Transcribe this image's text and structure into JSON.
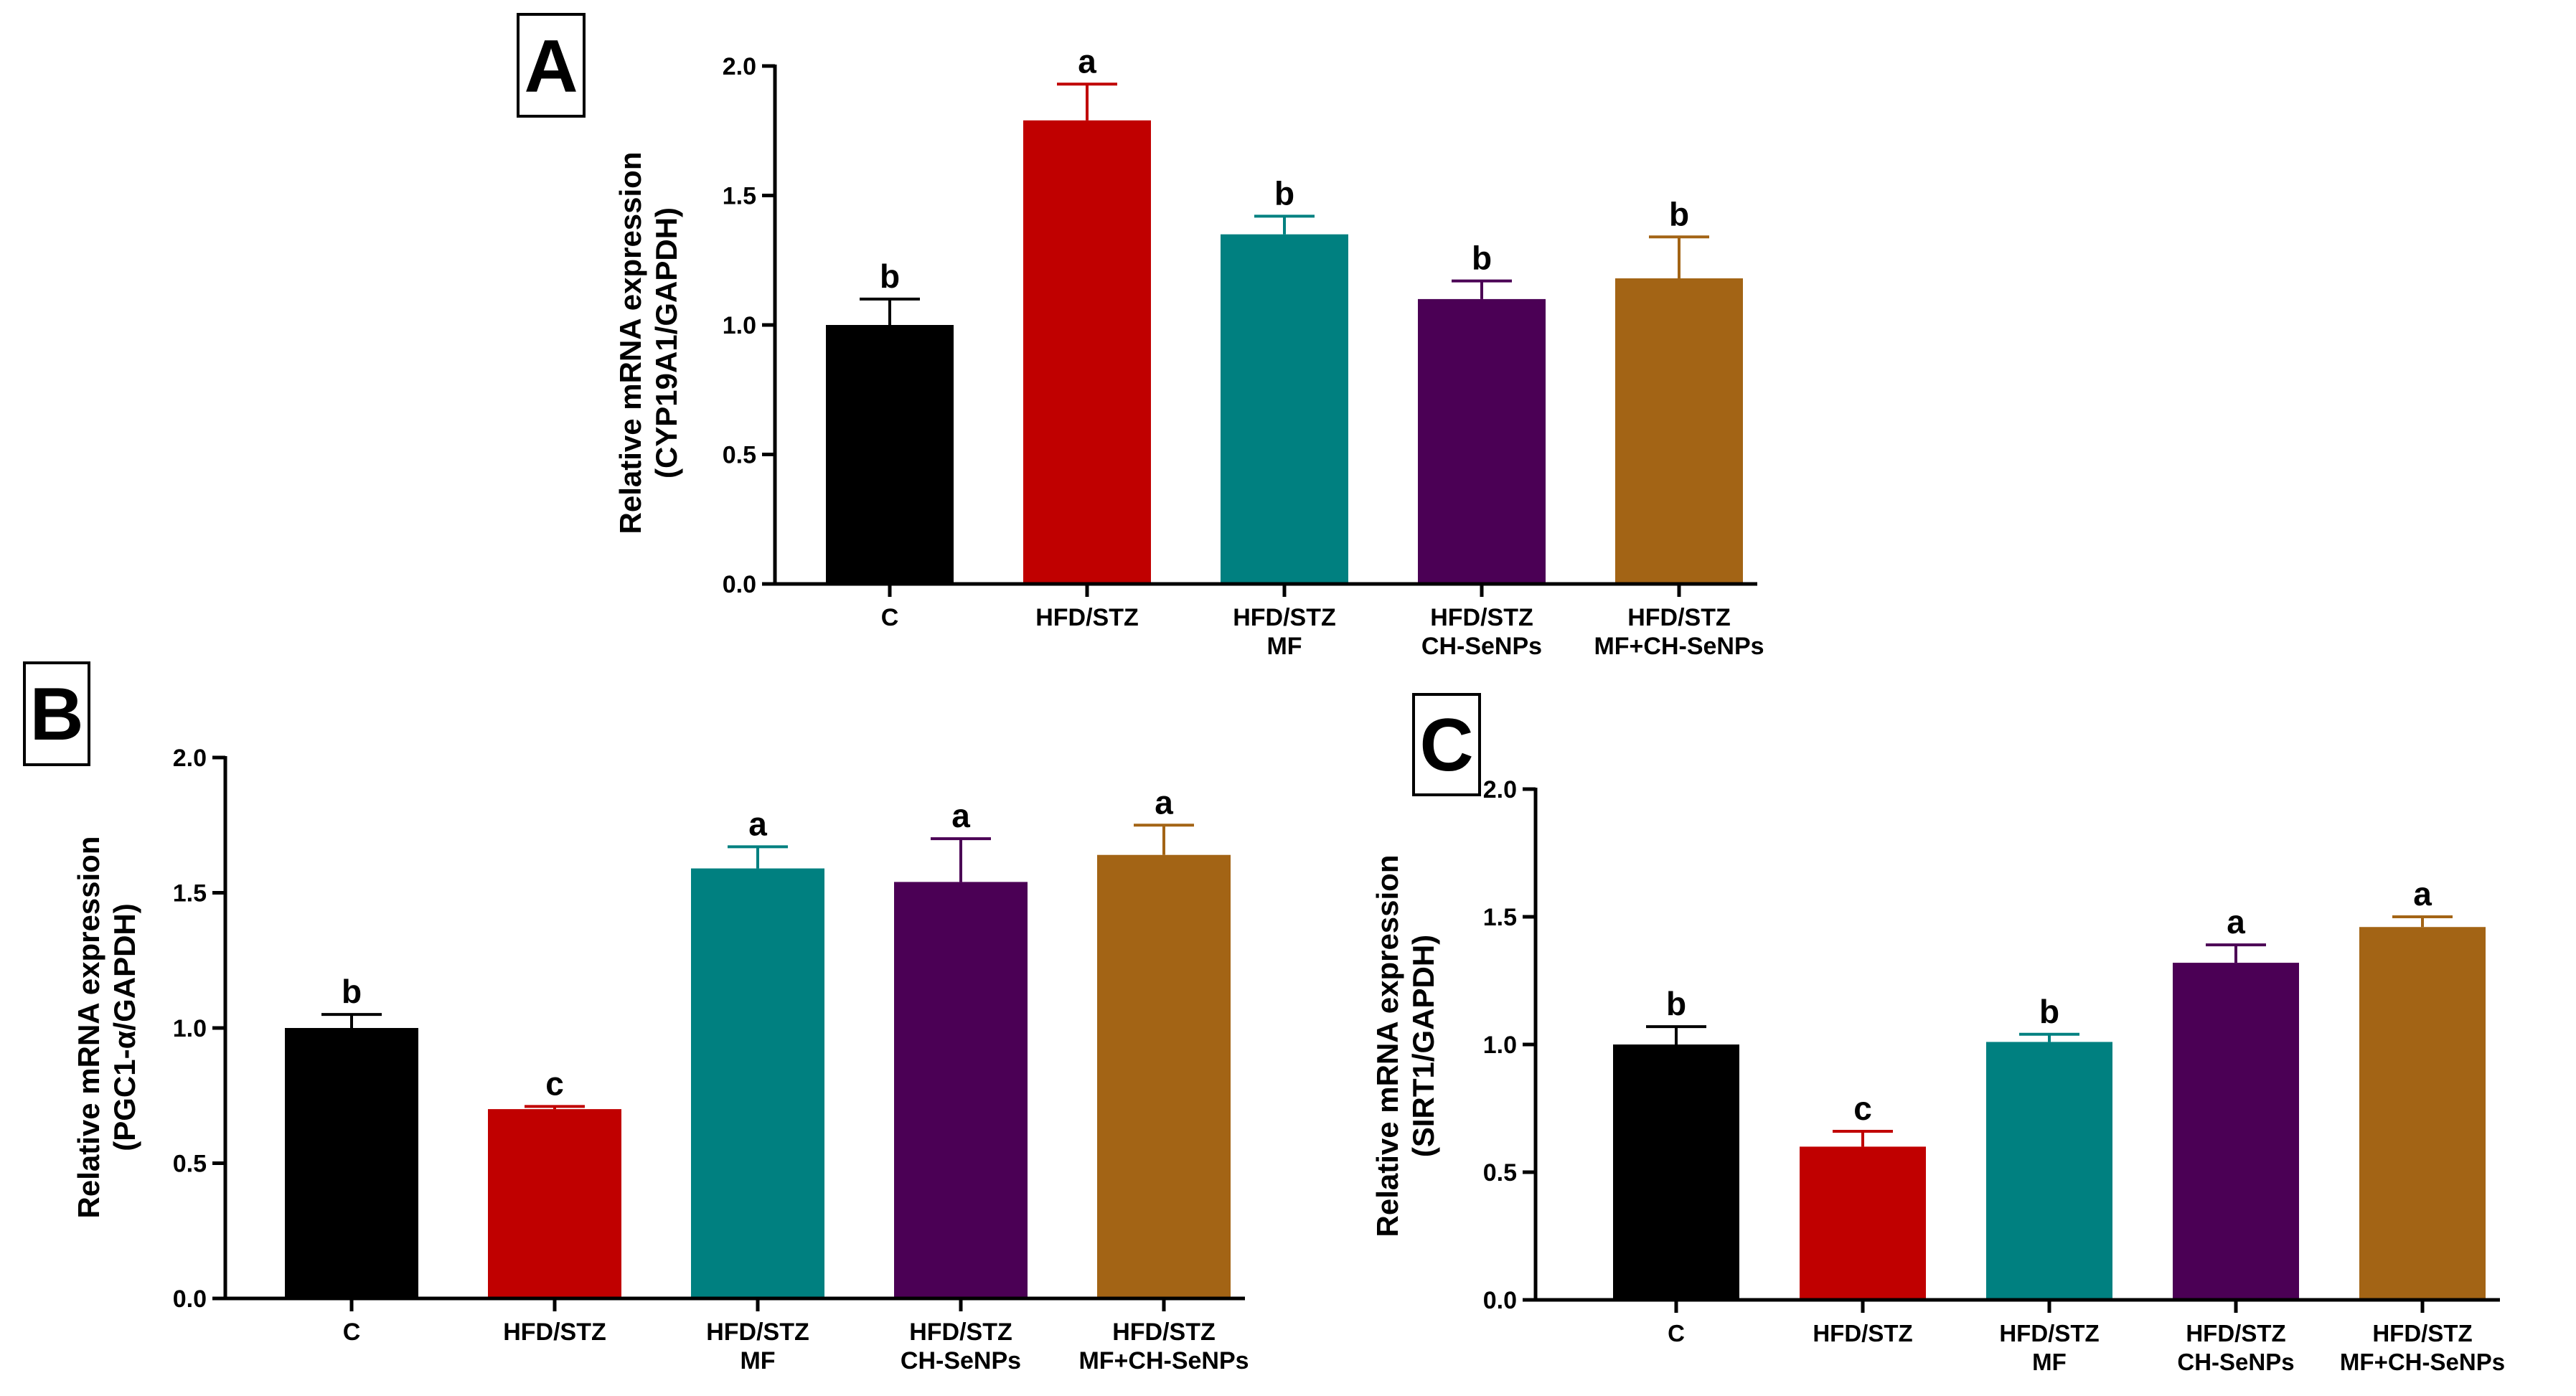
{
  "colors": {
    "C": "#000000",
    "HFD/STZ": "#c00000",
    "HFD/STZ MF": "#008080",
    "HFD/STZ CH-SeNPs": "#4b0055",
    "HFD/STZ MF+CH-SeNPs": "#a36415"
  },
  "chart_data": [
    {
      "panel_label": "A",
      "type": "bar",
      "ylabel_lines": [
        "Relative mRNA expression",
        "(CYP19A1/GAPDH)"
      ],
      "ylim": [
        0,
        2.0
      ],
      "yticks": [
        "0.0",
        "0.5",
        "1.0",
        "1.5",
        "2.0"
      ],
      "categories": [
        {
          "lines": [
            "C"
          ]
        },
        {
          "lines": [
            "HFD/STZ"
          ]
        },
        {
          "lines": [
            "HFD/STZ",
            "MF"
          ]
        },
        {
          "lines": [
            "HFD/STZ",
            "CH-SeNPs"
          ]
        },
        {
          "lines": [
            "HFD/STZ",
            "MF+CH-SeNPs"
          ]
        }
      ],
      "values": [
        1.0,
        1.79,
        1.35,
        1.1,
        1.18
      ],
      "errors": [
        0.1,
        0.14,
        0.07,
        0.07,
        0.16
      ],
      "significance": [
        "b",
        "a",
        "b",
        "b",
        "b"
      ]
    },
    {
      "panel_label": "B",
      "type": "bar",
      "ylabel_lines": [
        "Relative mRNA expression",
        "(PGC1-α/GAPDH)"
      ],
      "ylim": [
        0,
        2.0
      ],
      "yticks": [
        "0.0",
        "0.5",
        "1.0",
        "1.5",
        "2.0"
      ],
      "categories": [
        {
          "lines": [
            "C"
          ]
        },
        {
          "lines": [
            "HFD/STZ"
          ]
        },
        {
          "lines": [
            "HFD/STZ",
            "MF"
          ]
        },
        {
          "lines": [
            "HFD/STZ",
            "CH-SeNPs"
          ]
        },
        {
          "lines": [
            "HFD/STZ",
            "MF+CH-SeNPs"
          ]
        }
      ],
      "values": [
        1.0,
        0.7,
        1.59,
        1.54,
        1.64
      ],
      "errors": [
        0.05,
        0.01,
        0.08,
        0.16,
        0.11
      ],
      "significance": [
        "b",
        "c",
        "a",
        "a",
        "a"
      ]
    },
    {
      "panel_label": "C",
      "type": "bar",
      "ylabel_lines": [
        "Relative mRNA expression",
        "(SIRT1/GAPDH)"
      ],
      "ylim": [
        0,
        2.0
      ],
      "yticks": [
        "0.0",
        "0.5",
        "1.0",
        "1.5",
        "2.0"
      ],
      "categories": [
        {
          "lines": [
            "C"
          ]
        },
        {
          "lines": [
            "HFD/STZ"
          ]
        },
        {
          "lines": [
            "HFD/STZ",
            "MF"
          ]
        },
        {
          "lines": [
            "HFD/STZ",
            "CH-SeNPs"
          ]
        },
        {
          "lines": [
            "HFD/STZ",
            "MF+CH-SeNPs"
          ]
        }
      ],
      "values": [
        1.0,
        0.6,
        1.01,
        1.32,
        1.46
      ],
      "errors": [
        0.07,
        0.06,
        0.03,
        0.07,
        0.04
      ],
      "significance": [
        "b",
        "c",
        "b",
        "a",
        "a"
      ]
    }
  ]
}
